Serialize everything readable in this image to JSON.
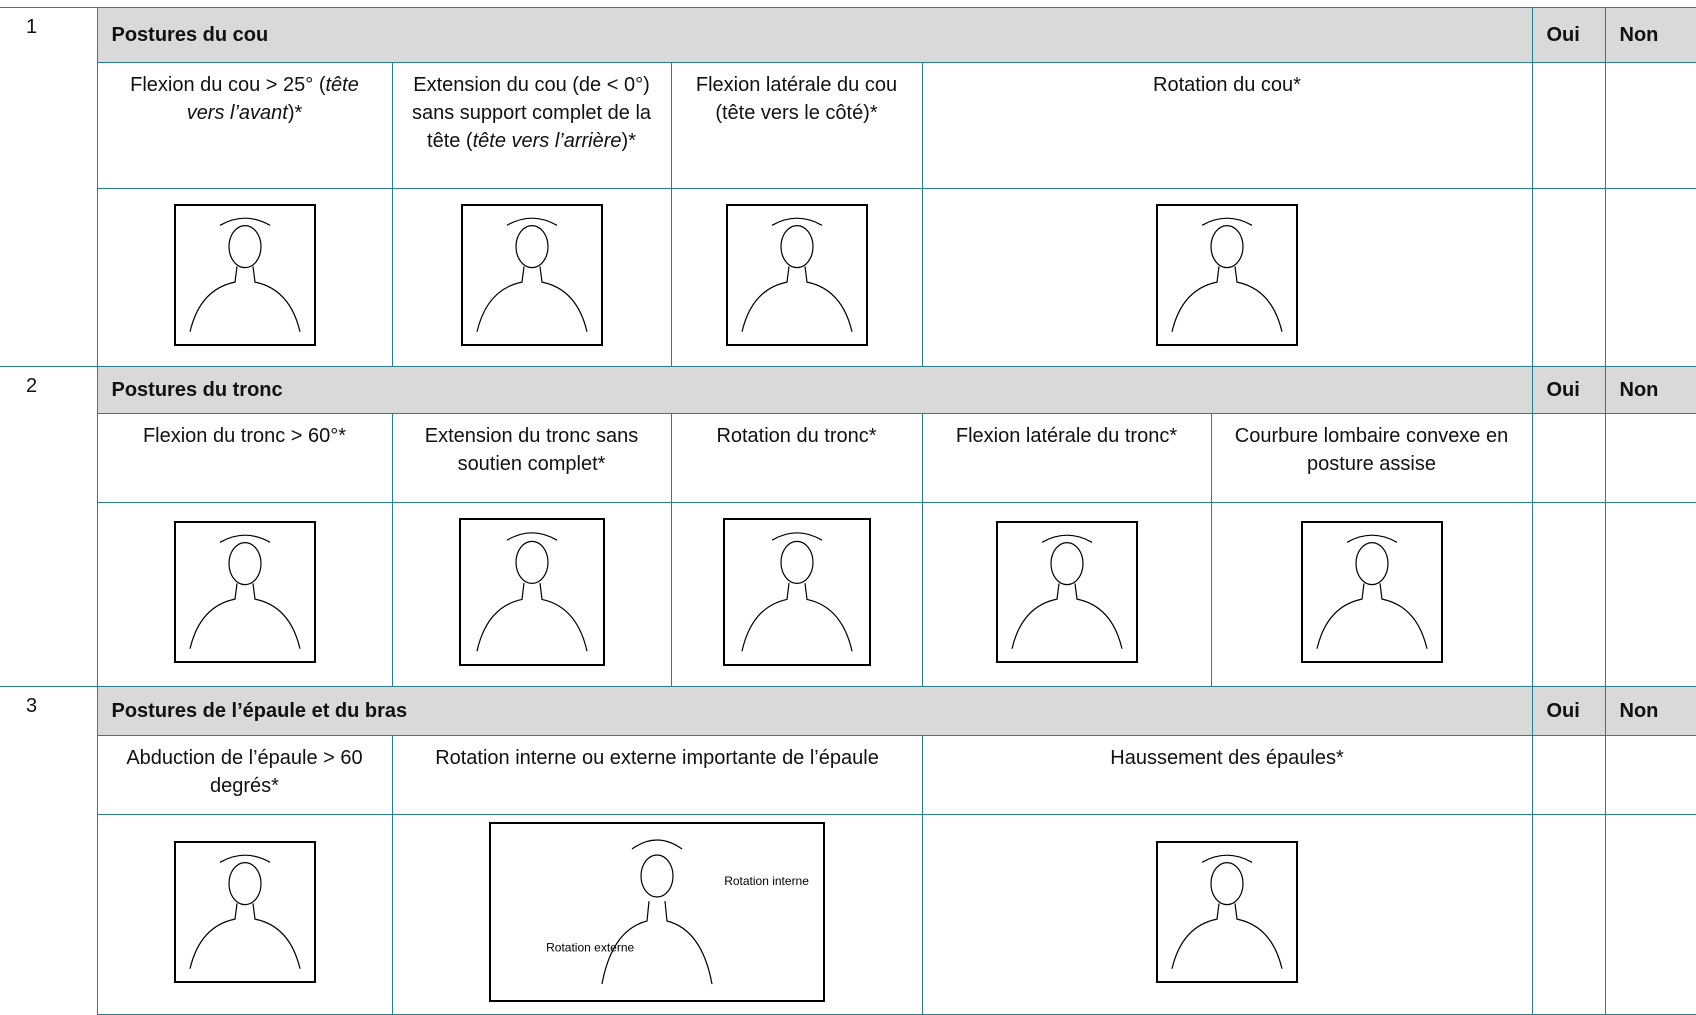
{
  "sections": [
    {
      "number": "1",
      "title": "Postures du cou",
      "yes": "Oui",
      "no": "Non",
      "items": [
        {
          "label": [
            {
              "text": "Flexion du cou > 25° ("
            },
            {
              "text": "tête vers l’avant",
              "italic": true
            },
            {
              "text": ")*"
            }
          ]
        },
        {
          "label": [
            {
              "text": "Extension du cou (de < 0°) sans support complet de la tête ("
            },
            {
              "text": "tête vers l’arrière",
              "italic": true
            },
            {
              "text": ")*"
            }
          ]
        },
        {
          "label": [
            {
              "text": "Flexion latérale du cou (tête vers le côté)*"
            }
          ]
        },
        {
          "label": [
            {
              "text": "Rotation du cou*"
            }
          ]
        }
      ]
    },
    {
      "number": "2",
      "title": "Postures du tronc",
      "yes": "Oui",
      "no": "Non",
      "items": [
        {
          "label": [
            {
              "text": "Flexion du tronc > 60°*"
            }
          ]
        },
        {
          "label": [
            {
              "text": "Extension du tronc sans soutien complet*"
            }
          ]
        },
        {
          "label": [
            {
              "text": "Rotation du tronc*"
            }
          ]
        },
        {
          "label": [
            {
              "text": "Flexion latérale du tronc*"
            }
          ]
        },
        {
          "label": [
            {
              "text": "Courbure lombaire convexe en posture assise"
            }
          ]
        }
      ]
    },
    {
      "number": "3",
      "title": "Postures de l’épaule et du bras",
      "yes": "Oui",
      "no": "Non",
      "items": [
        {
          "label": [
            {
              "text": "Abduction de l’épaule > 60 degrés*"
            }
          ]
        },
        {
          "label": [
            {
              "text": "Rotation interne ou externe importante de l’épaule"
            }
          ],
          "image_labels": [
            "Rotation interne",
            "Rotation externe"
          ]
        },
        {
          "label": [
            {
              "text": "Haussement des épaules*"
            }
          ]
        }
      ]
    }
  ]
}
